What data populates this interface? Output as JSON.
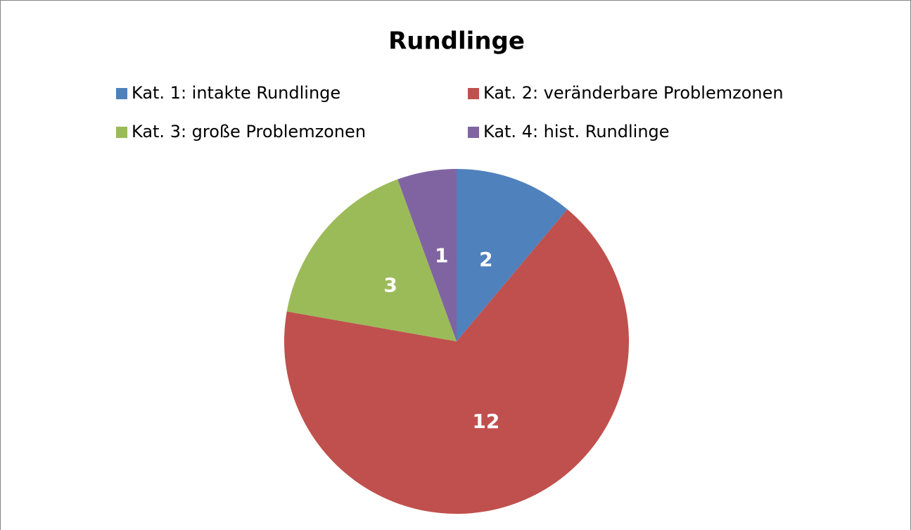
{
  "chart_data": {
    "type": "pie",
    "title": "Rundlinge",
    "categories": [
      "Kat. 1: intakte Rundlinge",
      "Kat. 2: veränderbare Problemzonen",
      "Kat. 3: große Problemzonen",
      "Kat. 4: hist. Rundlinge"
    ],
    "values": [
      2,
      12,
      3,
      1
    ],
    "colors": [
      "#4f81bd",
      "#c0504d",
      "#9bbb59",
      "#8064a2"
    ],
    "legend": "top"
  }
}
